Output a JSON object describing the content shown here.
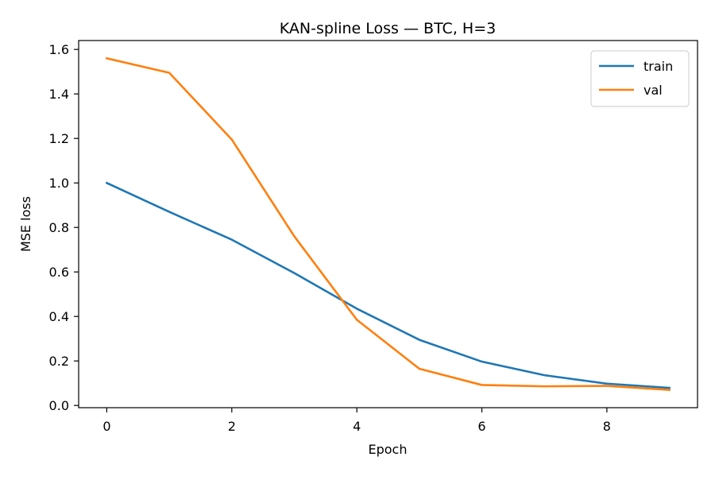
{
  "chart_data": {
    "type": "line",
    "title": "KAN-spline Loss — BTC, H=3",
    "xlabel": "Epoch",
    "ylabel": "MSE loss",
    "x": [
      0,
      1,
      2,
      3,
      4,
      5,
      6,
      7,
      8,
      9
    ],
    "xlim": [
      -0.45,
      9.45
    ],
    "ylim": [
      -0.01,
      1.64
    ],
    "xticks": [
      0,
      2,
      4,
      6,
      8
    ],
    "yticks": [
      0.0,
      0.2,
      0.4,
      0.6,
      0.8,
      1.0,
      1.2,
      1.4,
      1.6
    ],
    "xtick_labels": [
      "0",
      "2",
      "4",
      "6",
      "8"
    ],
    "ytick_labels": [
      "0.0",
      "0.2",
      "0.4",
      "0.6",
      "0.8",
      "1.0",
      "1.2",
      "1.4",
      "1.6"
    ],
    "grid": false,
    "legend": {
      "placement": "top-right"
    },
    "series": [
      {
        "name": "train",
        "color": "#1f77b4",
        "values": [
          1.0,
          0.87,
          0.745,
          0.595,
          0.435,
          0.295,
          0.197,
          0.136,
          0.098,
          0.079
        ]
      },
      {
        "name": "val",
        "color": "#ff7f0e",
        "values": [
          1.56,
          1.495,
          1.195,
          0.76,
          0.385,
          0.165,
          0.092,
          0.086,
          0.088,
          0.07
        ]
      }
    ]
  }
}
